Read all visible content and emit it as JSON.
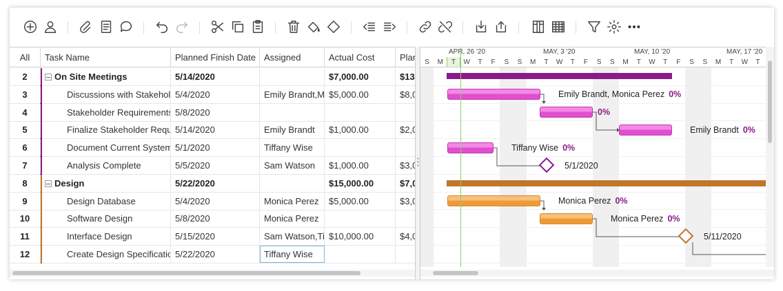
{
  "toolbar": {
    "icons": [
      "add-icon",
      "user-icon",
      "attachment-icon",
      "notes-icon",
      "comment-icon",
      "undo-icon",
      "redo-icon",
      "cut-icon",
      "copy-icon",
      "paste-icon",
      "delete-icon",
      "fill-color-icon",
      "milestone-icon",
      "outdent-icon",
      "indent-icon",
      "link-icon",
      "unlink-icon",
      "import-icon",
      "export-icon",
      "columns-icon",
      "grid-icon",
      "filter-icon",
      "settings-icon",
      "more-icon"
    ]
  },
  "grid": {
    "headers": [
      "All",
      "Task Name",
      "Planned Finish Date",
      "Assigned",
      "Actual Cost",
      "Plan"
    ],
    "rows": [
      {
        "id": "2",
        "name": "On Site Meetings",
        "finish": "5/14/2020",
        "assigned": "",
        "cost": "$7,000.00",
        "plan": "$13",
        "summary": true,
        "color": "#8a1c88"
      },
      {
        "id": "3",
        "name": "Discussions with Stakeholders",
        "finish": "5/4/2020",
        "assigned": "Emily Brandt,Monica Perez",
        "cost": "$5,000.00",
        "plan": "$8,0",
        "summary": false,
        "color": "#8a1c88"
      },
      {
        "id": "4",
        "name": "Stakeholder Requirements",
        "finish": "5/8/2020",
        "assigned": "",
        "cost": "",
        "plan": "",
        "summary": false,
        "color": "#8a1c88"
      },
      {
        "id": "5",
        "name": "Finalize Stakeholder Requirements",
        "finish": "5/14/2020",
        "assigned": "Emily Brandt",
        "cost": "$1,000.00",
        "plan": "$2,0",
        "summary": false,
        "color": "#8a1c88"
      },
      {
        "id": "6",
        "name": "Document Current Systems",
        "finish": "5/1/2020",
        "assigned": "Tiffany Wise",
        "cost": "",
        "plan": "",
        "summary": false,
        "color": "#8a1c88"
      },
      {
        "id": "7",
        "name": "Analysis Complete",
        "finish": "5/5/2020",
        "assigned": "Sam Watson",
        "cost": "$1,000.00",
        "plan": "$3,0",
        "summary": false,
        "color": "#8a1c88"
      },
      {
        "id": "8",
        "name": "Design",
        "finish": "5/22/2020",
        "assigned": "",
        "cost": "$15,000.00",
        "plan": "$7,0",
        "summary": true,
        "color": "#c2762a"
      },
      {
        "id": "9",
        "name": "Design Database",
        "finish": "5/4/2020",
        "assigned": "Monica Perez",
        "cost": "$5,000.00",
        "plan": "$3,0",
        "summary": false,
        "color": "#c2762a"
      },
      {
        "id": "10",
        "name": "Software Design",
        "finish": "5/8/2020",
        "assigned": "Monica Perez",
        "cost": "",
        "plan": "",
        "summary": false,
        "color": "#c2762a"
      },
      {
        "id": "11",
        "name": "Interface Design",
        "finish": "5/15/2020",
        "assigned": "Sam Watson,Tiffany Wise",
        "cost": "$10,000.00",
        "plan": "$4,0",
        "summary": false,
        "color": "#c2762a"
      },
      {
        "id": "12",
        "name": "Create Design Specifications",
        "finish": "5/22/2020",
        "assigned": "Tiffany Wise",
        "cost": "",
        "plan": "",
        "summary": false,
        "color": "#c2762a"
      }
    ]
  },
  "gantt": {
    "weeks": [
      "APR, 26 '20",
      "MAY, 3 '20",
      "MAY, 10 '20",
      "MAY, 17 '20"
    ],
    "days": [
      "S",
      "M",
      "T",
      "W",
      "T",
      "F",
      "S",
      "S",
      "M",
      "T",
      "W",
      "T",
      "F",
      "S",
      "S",
      "M",
      "T",
      "W",
      "T",
      "F",
      "S",
      "S",
      "M",
      "T",
      "W",
      "T",
      "F"
    ],
    "labels": {
      "r3": "Emily Brandt, Monica Perez",
      "r3_pct": "0%",
      "r4_pct": "0%",
      "r5": "Emily Brandt",
      "r5_pct": "0%",
      "r6": "Tiffany Wise",
      "r6_pct": "0%",
      "r7": "5/1/2020",
      "r9": "Monica Perez",
      "r9_pct": "0%",
      "r10": "Monica Perez",
      "r10_pct": "0%",
      "r11": "5/11/2020"
    },
    "colors": {
      "purple": "#8a1c88",
      "orange": "#c2762a"
    }
  }
}
